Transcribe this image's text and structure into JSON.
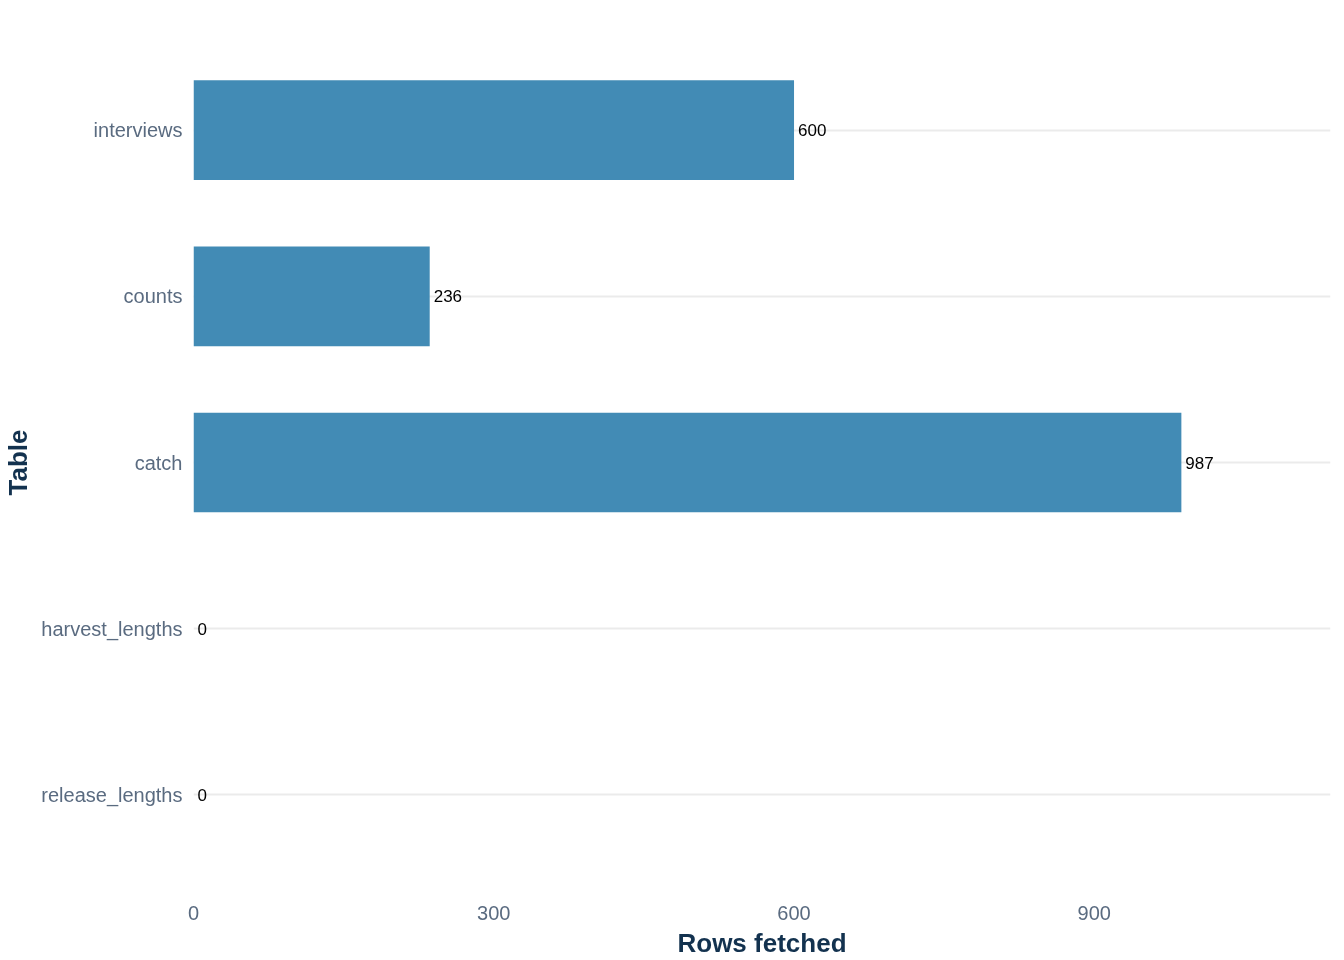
{
  "chart_data": {
    "type": "bar",
    "orientation": "horizontal",
    "categories": [
      "interviews",
      "counts",
      "catch",
      "harvest_lengths",
      "release_lengths"
    ],
    "values": [
      600,
      236,
      987,
      0,
      0
    ],
    "color": "#428bb5",
    "xlim": [
      0,
      1136
    ],
    "xticks": [
      0,
      300,
      600,
      900
    ],
    "xlabel": "Rows fetched",
    "ylabel": "Table",
    "grid": "y",
    "data_labels": true
  }
}
